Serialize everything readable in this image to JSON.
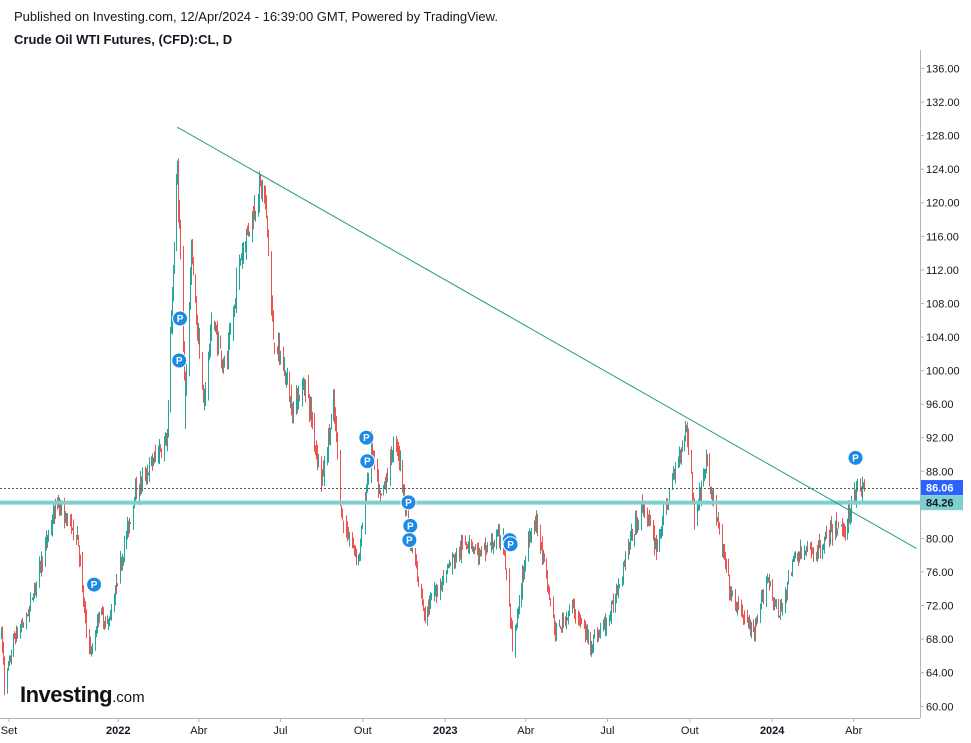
{
  "header": {
    "published": "Published on Investing.com, 12/Apr/2024 - 16:39:00 GMT, Powered by TradingView.",
    "title": "Crude Oil WTI Futures, (CFD):CL, D"
  },
  "logo": {
    "main": "Investing",
    "suffix": ".com"
  },
  "colors": {
    "up": "#26a69a",
    "down": "#ef5350",
    "trendline": "#1e9e7a",
    "support": "#7ecfd0",
    "marker": "#1e88e5",
    "last_price_tag": "#2962ff",
    "support_tag": "#7ecfd0"
  },
  "chart_data": {
    "type": "candlestick",
    "title": "Crude Oil WTI Futures, (CFD):CL, D",
    "xlabel": "",
    "ylabel": "",
    "y_ticks": [
      "136.00",
      "132.00",
      "128.00",
      "124.00",
      "120.00",
      "116.00",
      "112.00",
      "108.00",
      "104.00",
      "100.00",
      "96.00",
      "92.00",
      "88.00",
      "84.00",
      "80.00",
      "76.00",
      "72.00",
      "68.00",
      "64.00",
      "60.00"
    ],
    "x_ticks": [
      "Set",
      "2022",
      "Abr",
      "Jul",
      "Out",
      "2023",
      "Abr",
      "Jul",
      "Out",
      "2024",
      "Abr"
    ],
    "x_tick_months": [
      "2021-09",
      "2022-01",
      "2022-04",
      "2022-07",
      "2022-10",
      "2023-01",
      "2023-04",
      "2023-07",
      "2023-10",
      "2024-01",
      "2024-04"
    ],
    "x_range": [
      "2021-08-22",
      "2024-06-14"
    ],
    "ylim": [
      58.6,
      138.2
    ],
    "last_price": {
      "value": 86.06,
      "label": "86.06"
    },
    "support_level": {
      "value": 84.26,
      "label": "84.26"
    },
    "trendline": {
      "start": [
        "2022-03-08",
        129.0
      ],
      "end": [
        "2024-06-10",
        78.8
      ]
    },
    "anchors": [
      [
        "2021-08-23",
        68.5
      ],
      [
        "2021-08-27",
        62.3
      ],
      [
        "2021-09-06",
        68.0
      ],
      [
        "2021-09-20",
        70.5
      ],
      [
        "2021-10-05",
        76.5
      ],
      [
        "2021-10-25",
        84.6
      ],
      [
        "2021-11-05",
        82.0
      ],
      [
        "2021-11-16",
        80.5
      ],
      [
        "2021-11-26",
        69.0
      ],
      [
        "2021-12-02",
        66.2
      ],
      [
        "2021-12-10",
        71.5
      ],
      [
        "2021-12-20",
        69.5
      ],
      [
        "2022-01-05",
        78.0
      ],
      [
        "2022-01-20",
        85.5
      ],
      [
        "2022-02-10",
        89.5
      ],
      [
        "2022-02-24",
        92.0
      ],
      [
        "2022-03-04",
        115.0
      ],
      [
        "2022-03-08",
        124.0
      ],
      [
        "2022-03-16",
        95.0
      ],
      [
        "2022-03-23",
        114.0
      ],
      [
        "2022-04-06",
        96.0
      ],
      [
        "2022-04-15",
        106.0
      ],
      [
        "2022-05-01",
        100.0
      ],
      [
        "2022-05-17",
        113.5
      ],
      [
        "2022-06-08",
        122.0
      ],
      [
        "2022-06-14",
        120.0
      ],
      [
        "2022-06-23",
        104.0
      ],
      [
        "2022-07-05",
        100.0
      ],
      [
        "2022-07-14",
        95.5
      ],
      [
        "2022-07-29",
        98.5
      ],
      [
        "2022-08-16",
        86.5
      ],
      [
        "2022-08-29",
        96.0
      ],
      [
        "2022-09-08",
        82.0
      ],
      [
        "2022-09-26",
        77.5
      ],
      [
        "2022-10-10",
        91.0
      ],
      [
        "2022-10-20",
        84.5
      ],
      [
        "2022-11-07",
        92.0
      ],
      [
        "2022-11-22",
        80.0
      ],
      [
        "2022-12-09",
        71.0
      ],
      [
        "2023-01-03",
        76.5
      ],
      [
        "2023-01-27",
        80.0
      ],
      [
        "2023-02-08",
        78.0
      ],
      [
        "2023-03-06",
        80.5
      ],
      [
        "2023-03-17",
        66.5
      ],
      [
        "2023-04-03",
        80.0
      ],
      [
        "2023-04-12",
        82.5
      ],
      [
        "2023-05-04",
        68.5
      ],
      [
        "2023-05-22",
        72.0
      ],
      [
        "2023-06-12",
        67.5
      ],
      [
        "2023-07-03",
        70.5
      ],
      [
        "2023-07-25",
        79.5
      ],
      [
        "2023-08-10",
        84.0
      ],
      [
        "2023-08-24",
        79.0
      ],
      [
        "2023-09-27",
        93.5
      ],
      [
        "2023-10-06",
        82.5
      ],
      [
        "2023-10-19",
        89.0
      ],
      [
        "2023-11-16",
        73.0
      ],
      [
        "2023-12-12",
        68.5
      ],
      [
        "2023-12-26",
        75.5
      ],
      [
        "2024-01-08",
        70.5
      ],
      [
        "2024-01-26",
        78.0
      ],
      [
        "2024-02-20",
        78.5
      ],
      [
        "2024-03-01",
        80.0
      ],
      [
        "2024-03-14",
        81.5
      ],
      [
        "2024-03-22",
        81.0
      ],
      [
        "2024-04-04",
        86.5
      ],
      [
        "2024-04-12",
        85.8
      ]
    ],
    "markers": [
      {
        "date": "2021-12-05",
        "price": 74.5,
        "label": "P"
      },
      {
        "date": "2022-03-11",
        "price": 106.2,
        "label": "P"
      },
      {
        "date": "2022-03-10",
        "price": 101.2,
        "label": "P"
      },
      {
        "date": "2022-10-05",
        "price": 92.0,
        "label": "P"
      },
      {
        "date": "2022-10-06",
        "price": 89.2,
        "label": "P"
      },
      {
        "date": "2022-11-21",
        "price": 84.3,
        "label": "P"
      },
      {
        "date": "2022-11-23",
        "price": 81.5,
        "label": "P"
      },
      {
        "date": "2022-11-22",
        "price": 79.8,
        "label": "P"
      },
      {
        "date": "2023-03-14",
        "price": 79.8,
        "label": "P"
      },
      {
        "date": "2023-03-15",
        "price": 79.3,
        "label": "P"
      },
      {
        "date": "2024-04-03",
        "price": 89.6,
        "label": "P"
      }
    ]
  }
}
